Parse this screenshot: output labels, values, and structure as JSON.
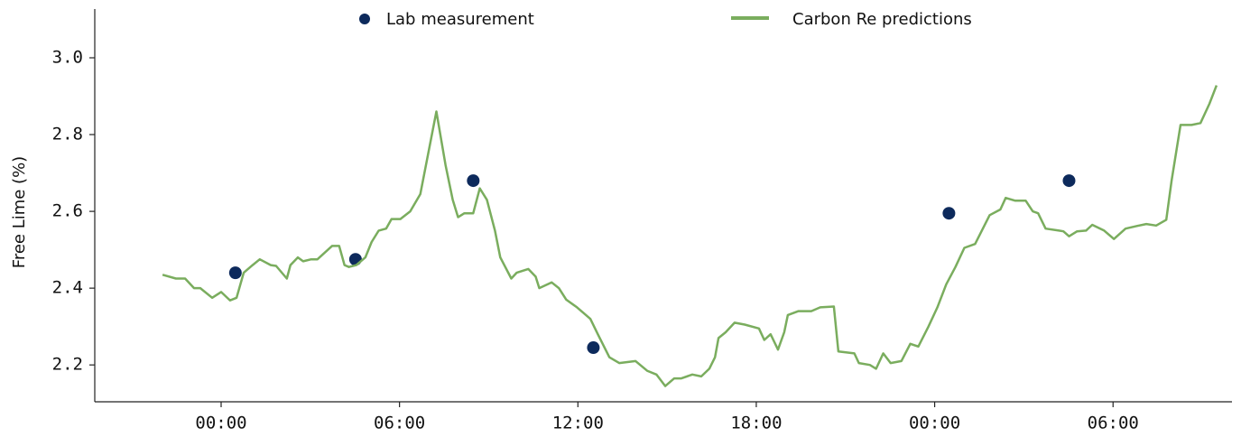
{
  "chart_data": {
    "type": "line",
    "ylabel": "Free Lime (%)",
    "xlim": [
      -4.25,
      34
    ],
    "ylim": [
      2.104,
      3.127
    ],
    "xticks": [
      {
        "value": 0,
        "label": "00:00"
      },
      {
        "value": 6,
        "label": "06:00"
      },
      {
        "value": 12,
        "label": "12:00"
      },
      {
        "value": 18,
        "label": "18:00"
      },
      {
        "value": 24,
        "label": "00:00"
      },
      {
        "value": 30,
        "label": "06:00"
      }
    ],
    "yticks": [
      {
        "value": 2.2,
        "label": "2.2"
      },
      {
        "value": 2.4,
        "label": "2.4"
      },
      {
        "value": 2.6,
        "label": "2.6"
      },
      {
        "value": 2.8,
        "label": "2.8"
      },
      {
        "value": 3.0,
        "label": "3.0"
      }
    ],
    "series": [
      {
        "name": "Lab measurement",
        "type": "scatter",
        "color": "#0d2a5c",
        "x": [
          0.48,
          4.52,
          8.48,
          12.52,
          24.48,
          28.52
        ],
        "values": [
          2.44,
          2.475,
          2.68,
          2.245,
          2.595,
          2.68
        ]
      },
      {
        "name": "Carbon Re predictions",
        "type": "line",
        "color": "#7aad5e",
        "x": [
          -1.97,
          -1.52,
          -1.21,
          -0.91,
          -0.7,
          -0.3,
          0,
          0.3,
          0.52,
          0.76,
          1.06,
          1.3,
          1.67,
          1.85,
          2.21,
          2.33,
          2.58,
          2.76,
          3.03,
          3.24,
          3.73,
          3.97,
          4.15,
          4.3,
          4.55,
          4.85,
          5.06,
          5.3,
          5.55,
          5.73,
          6.03,
          6.36,
          6.7,
          7.24,
          7.55,
          7.79,
          7.97,
          8.18,
          8.48,
          8.7,
          8.94,
          9.21,
          9.39,
          9.76,
          9.94,
          10.33,
          10.58,
          10.7,
          11.12,
          11.36,
          11.61,
          11.97,
          12.27,
          12.42,
          12.67,
          13.06,
          13.39,
          13.94,
          14.33,
          14.64,
          14.94,
          15.24,
          15.48,
          15.85,
          16.15,
          16.42,
          16.61,
          16.73,
          16.97,
          17.27,
          17.61,
          18.09,
          18.27,
          18.48,
          18.73,
          18.94,
          19.06,
          19.42,
          19.85,
          20.15,
          20.61,
          20.76,
          21.3,
          21.45,
          21.82,
          22.03,
          22.27,
          22.52,
          22.88,
          23.18,
          23.45,
          23.79,
          24.09,
          24.39,
          24.7,
          25.0,
          25.36,
          25.85,
          26.21,
          26.39,
          26.7,
          27.06,
          27.3,
          27.48,
          27.73,
          28.18,
          28.33,
          28.52,
          28.79,
          29.09,
          29.3,
          29.7,
          30.03,
          30.42,
          30.82,
          31.12,
          31.45,
          31.79,
          31.97,
          32.27,
          32.64,
          32.94,
          33.24,
          33.48
        ],
        "values": [
          2.435,
          2.425,
          2.425,
          2.4,
          2.4,
          2.375,
          2.39,
          2.368,
          2.375,
          2.44,
          2.46,
          2.475,
          2.46,
          2.458,
          2.425,
          2.46,
          2.48,
          2.47,
          2.475,
          2.475,
          2.51,
          2.51,
          2.46,
          2.455,
          2.46,
          2.48,
          2.52,
          2.55,
          2.555,
          2.58,
          2.58,
          2.6,
          2.645,
          2.86,
          2.72,
          2.63,
          2.585,
          2.595,
          2.595,
          2.66,
          2.63,
          2.55,
          2.48,
          2.425,
          2.44,
          2.45,
          2.43,
          2.4,
          2.415,
          2.4,
          2.37,
          2.35,
          2.33,
          2.32,
          2.28,
          2.22,
          2.205,
          2.21,
          2.185,
          2.175,
          2.145,
          2.165,
          2.165,
          2.175,
          2.17,
          2.19,
          2.22,
          2.27,
          2.285,
          2.31,
          2.305,
          2.295,
          2.265,
          2.28,
          2.24,
          2.285,
          2.33,
          2.34,
          2.34,
          2.35,
          2.352,
          2.235,
          2.23,
          2.205,
          2.2,
          2.19,
          2.23,
          2.205,
          2.21,
          2.255,
          2.248,
          2.3,
          2.35,
          2.41,
          2.455,
          2.505,
          2.515,
          2.59,
          2.605,
          2.635,
          2.628,
          2.628,
          2.6,
          2.595,
          2.555,
          2.55,
          2.548,
          2.535,
          2.548,
          2.55,
          2.565,
          2.55,
          2.528,
          2.555,
          2.562,
          2.567,
          2.563,
          2.578,
          2.68,
          2.825,
          2.825,
          2.83,
          2.88,
          2.928
        ]
      }
    ]
  }
}
